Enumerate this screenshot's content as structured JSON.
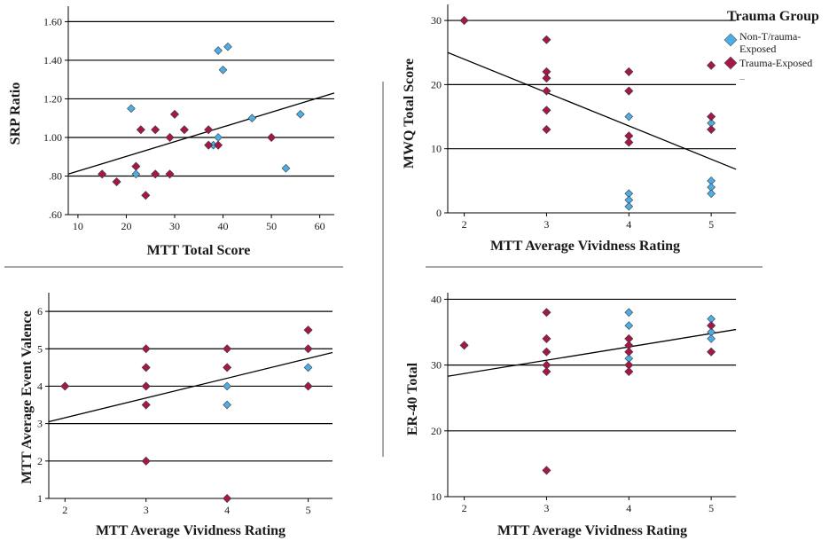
{
  "colors": {
    "non_trauma": "#4BAEE6",
    "trauma": "#A5174A",
    "line": "#000000",
    "separator": "#8c8c8c"
  },
  "legend": {
    "title": "Trauma Group",
    "entries": [
      {
        "line1": "Non-T/rauma-",
        "line2": "Exposed",
        "group": "non_trauma"
      },
      {
        "line1": "Trauma-Exposed",
        "line2": "",
        "group": "trauma"
      }
    ],
    "ellipsis": "..."
  },
  "chart_data": [
    {
      "id": "srp",
      "type": "scatter",
      "xlabel": "MTT Total Score",
      "ylabel": "SRP Ratio",
      "xlim": [
        8,
        63
      ],
      "ylim": [
        0.6,
        1.68
      ],
      "x_ticks": [
        10,
        20,
        30,
        40,
        50,
        60
      ],
      "y_ticks": [
        0.6,
        0.8,
        1.0,
        1.2,
        1.4,
        1.6
      ],
      "y_tick_labels": [
        ".60",
        ".80",
        "1.00",
        "1.20",
        "1.40",
        "1.60"
      ],
      "gridlines_y": [
        0.8,
        1.0,
        1.2,
        1.4,
        1.6
      ],
      "fit_line": [
        [
          8,
          0.81
        ],
        [
          63,
          1.23
        ]
      ],
      "series": [
        {
          "name": "Non-T/rauma-Exposed",
          "group": "non_trauma",
          "points": [
            [
              21,
              1.15
            ],
            [
              22,
              0.81
            ],
            [
              38,
              0.96
            ],
            [
              39,
              1.0
            ],
            [
              39,
              1.45
            ],
            [
              40,
              1.35
            ],
            [
              41,
              1.47
            ],
            [
              46,
              1.1
            ],
            [
              53,
              0.84
            ],
            [
              56,
              1.12
            ]
          ]
        },
        {
          "name": "Trauma-Exposed",
          "group": "trauma",
          "points": [
            [
              15,
              0.81
            ],
            [
              18,
              0.77
            ],
            [
              22,
              0.85
            ],
            [
              23,
              1.04
            ],
            [
              24,
              0.7
            ],
            [
              26,
              1.04
            ],
            [
              26,
              0.81
            ],
            [
              29,
              0.81
            ],
            [
              29,
              1.0
            ],
            [
              30,
              1.12
            ],
            [
              32,
              1.04
            ],
            [
              37,
              1.04
            ],
            [
              37,
              0.96
            ],
            [
              39,
              0.96
            ],
            [
              50,
              1.0
            ]
          ]
        }
      ]
    },
    {
      "id": "mwq",
      "type": "scatter",
      "xlabel": "MTT Average Vividness Rating",
      "ylabel": "MWQ Total Score",
      "xlim": [
        1.8,
        5.3
      ],
      "ylim": [
        0,
        32.5
      ],
      "x_ticks": [
        2,
        3,
        4,
        5
      ],
      "y_ticks": [
        0,
        10,
        20,
        30
      ],
      "y_tick_labels": [
        "0",
        "10",
        "20",
        "30"
      ],
      "gridlines_y": [
        10,
        20,
        30
      ],
      "fit_line": [
        [
          1.8,
          25.0
        ],
        [
          5.3,
          6.8
        ]
      ],
      "series": [
        {
          "name": "Non-T/rauma-Exposed",
          "group": "non_trauma",
          "points": [
            [
              4,
              15
            ],
            [
              4,
              3
            ],
            [
              4,
              2
            ],
            [
              4,
              1
            ],
            [
              5,
              14
            ],
            [
              5,
              5
            ],
            [
              5,
              4
            ],
            [
              5,
              3
            ]
          ]
        },
        {
          "name": "Trauma-Exposed",
          "group": "trauma",
          "points": [
            [
              2,
              30
            ],
            [
              3,
              27
            ],
            [
              3,
              22
            ],
            [
              3,
              21
            ],
            [
              3,
              19
            ],
            [
              3,
              16
            ],
            [
              3,
              13
            ],
            [
              4,
              22
            ],
            [
              4,
              19
            ],
            [
              4,
              12
            ],
            [
              4,
              11
            ],
            [
              5,
              23
            ],
            [
              5,
              15
            ],
            [
              5,
              13
            ]
          ]
        }
      ]
    },
    {
      "id": "valence",
      "type": "scatter",
      "xlabel": "MTT Average Vividness Rating",
      "ylabel": "MTT Average Event Valence",
      "xlim": [
        1.8,
        5.3
      ],
      "ylim": [
        1,
        6.5
      ],
      "x_ticks": [
        2,
        3,
        4,
        5
      ],
      "y_ticks": [
        1,
        2,
        3,
        4,
        5,
        6
      ],
      "y_tick_labels": [
        "1",
        "2",
        "3",
        "4",
        "5",
        "6"
      ],
      "gridlines_y": [
        2,
        3,
        4,
        5,
        6
      ],
      "fit_line": [
        [
          1.8,
          3.05
        ],
        [
          5.3,
          4.9
        ]
      ],
      "series": [
        {
          "name": "Non-T/rauma-Exposed",
          "group": "non_trauma",
          "points": [
            [
              4,
              4.0
            ],
            [
              4,
              3.5
            ],
            [
              5,
              4.5
            ]
          ]
        },
        {
          "name": "Trauma-Exposed",
          "group": "trauma",
          "points": [
            [
              2,
              4.0
            ],
            [
              3,
              5.0
            ],
            [
              3,
              4.5
            ],
            [
              3,
              4.0
            ],
            [
              3,
              3.5
            ],
            [
              3,
              2.0
            ],
            [
              4,
              5.0
            ],
            [
              4,
              4.5
            ],
            [
              4,
              1.0
            ],
            [
              5,
              5.5
            ],
            [
              5,
              5.0
            ],
            [
              5,
              4.0
            ]
          ]
        }
      ]
    },
    {
      "id": "er40",
      "type": "scatter",
      "xlabel": "MTT Average Vividness Rating",
      "ylabel": "ER-40 Total",
      "xlim": [
        1.8,
        5.3
      ],
      "ylim": [
        10,
        41
      ],
      "x_ticks": [
        2,
        3,
        4,
        5
      ],
      "y_ticks": [
        10,
        20,
        30,
        40
      ],
      "y_tick_labels": [
        "10",
        "20",
        "30",
        "40"
      ],
      "gridlines_y": [
        20,
        30,
        40
      ],
      "fit_line": [
        [
          1.8,
          28.3
        ],
        [
          5.3,
          35.4
        ]
      ],
      "series": [
        {
          "name": "Non-T/rauma-Exposed",
          "group": "non_trauma",
          "points": [
            [
              4,
              38
            ],
            [
              4,
              36
            ],
            [
              4,
              31
            ],
            [
              5,
              37
            ],
            [
              5,
              35
            ],
            [
              5,
              34
            ]
          ]
        },
        {
          "name": "Trauma-Exposed",
          "group": "trauma",
          "points": [
            [
              2,
              33
            ],
            [
              3,
              38
            ],
            [
              3,
              34
            ],
            [
              3,
              32
            ],
            [
              3,
              30
            ],
            [
              3,
              29
            ],
            [
              3,
              14
            ],
            [
              4,
              34
            ],
            [
              4,
              33
            ],
            [
              4,
              32
            ],
            [
              4,
              30
            ],
            [
              4,
              29
            ],
            [
              5,
              36
            ],
            [
              5,
              32
            ]
          ]
        }
      ]
    }
  ]
}
